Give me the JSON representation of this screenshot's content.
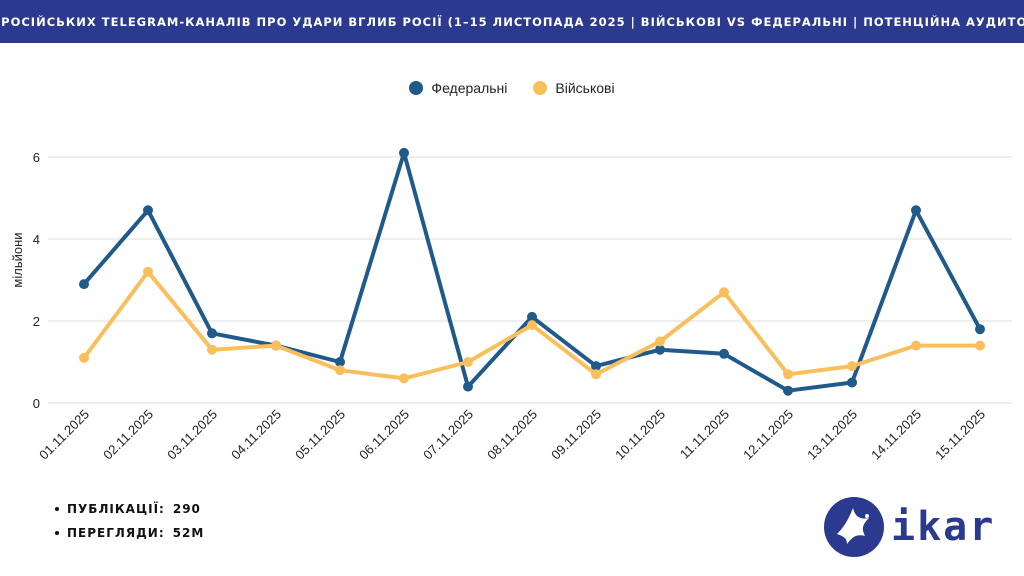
{
  "header": {
    "title": "ТОП РОСІЙСЬКИХ TELEGRAM-КАНАЛІВ ПРО УДАРИ ВГЛИБ РОСІЇ (1–15 ЛИСТОПАДА 2025 | ВІЙСЬКОВІ VS ФЕДЕРАЛЬНІ | ПОТЕНЦІЙНА АУДИТОРІЯ)"
  },
  "colors": {
    "banner": "#2b3a8f",
    "federal": "#1f5a8b",
    "military": "#f9bf5c",
    "grid": "#dddddd"
  },
  "chart_data": {
    "type": "line",
    "title": "",
    "xlabel": "",
    "ylabel": "мільйони",
    "ylim": [
      0,
      6.5
    ],
    "yticks": [
      0,
      2,
      4,
      6
    ],
    "grid": true,
    "legend_position": "top-center",
    "categories": [
      "01.11.2025",
      "02.11.2025",
      "03.11.2025",
      "04.11.2025",
      "05.11.2025",
      "06.11.2025",
      "07.11.2025",
      "08.11.2025",
      "09.11.2025",
      "10.11.2025",
      "11.11.2025",
      "12.11.2025",
      "13.11.2025",
      "14.11.2025",
      "15.11.2025"
    ],
    "series": [
      {
        "name": "Федеральні",
        "color": "#1f5a8b",
        "values": [
          2.9,
          4.7,
          1.7,
          1.4,
          1.0,
          6.1,
          0.4,
          2.1,
          0.9,
          1.3,
          1.2,
          0.3,
          0.5,
          4.7,
          1.8
        ]
      },
      {
        "name": "Військові",
        "color": "#f9bf5c",
        "values": [
          1.1,
          3.2,
          1.3,
          1.4,
          0.8,
          0.6,
          1.0,
          1.9,
          0.7,
          1.5,
          2.7,
          0.7,
          0.9,
          1.4,
          1.4
        ]
      }
    ]
  },
  "stats": {
    "publications_label": "ПУБЛІКАЦІЇ:",
    "publications_value": "290",
    "views_label": "ПЕРЕГЛЯДИ:",
    "views_value": "52M"
  },
  "logo": {
    "text": "ikar",
    "icon": "dove-icon"
  }
}
